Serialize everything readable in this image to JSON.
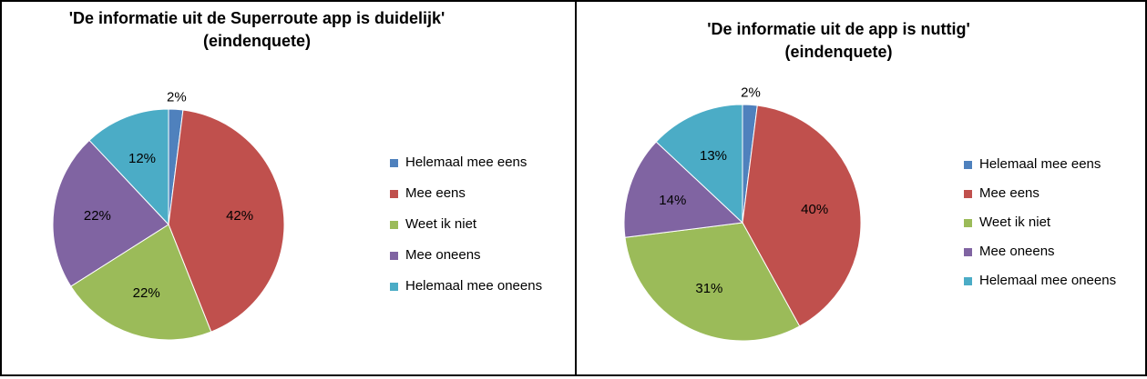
{
  "chart_data": [
    {
      "type": "pie",
      "title": "'De informatie uit de Superroute app is duidelijk'",
      "subtitle": "(eindenquete)",
      "categories": [
        "Helemaal mee eens",
        "Mee eens",
        "Weet ik niet",
        "Mee oneens",
        "Helemaal mee oneens"
      ],
      "values": [
        2,
        42,
        22,
        22,
        12
      ],
      "labels": [
        "2%",
        "42%",
        "22%",
        "22%",
        "12%"
      ],
      "colors": [
        "#4F81BD",
        "#C0504D",
        "#9BBB59",
        "#8064A2",
        "#4BACC6"
      ],
      "legend": "right"
    },
    {
      "type": "pie",
      "title": "'De informatie uit de app is nuttig'",
      "subtitle": "(eindenquete)",
      "categories": [
        "Helemaal mee eens",
        "Mee eens",
        "Weet ik niet",
        "Mee oneens",
        "Helemaal mee oneens"
      ],
      "values": [
        2,
        40,
        31,
        14,
        13
      ],
      "labels": [
        "2%",
        "40%",
        "31%",
        "14%",
        "13%"
      ],
      "colors": [
        "#4F81BD",
        "#C0504D",
        "#9BBB59",
        "#8064A2",
        "#4BACC6"
      ],
      "legend": "right"
    }
  ]
}
